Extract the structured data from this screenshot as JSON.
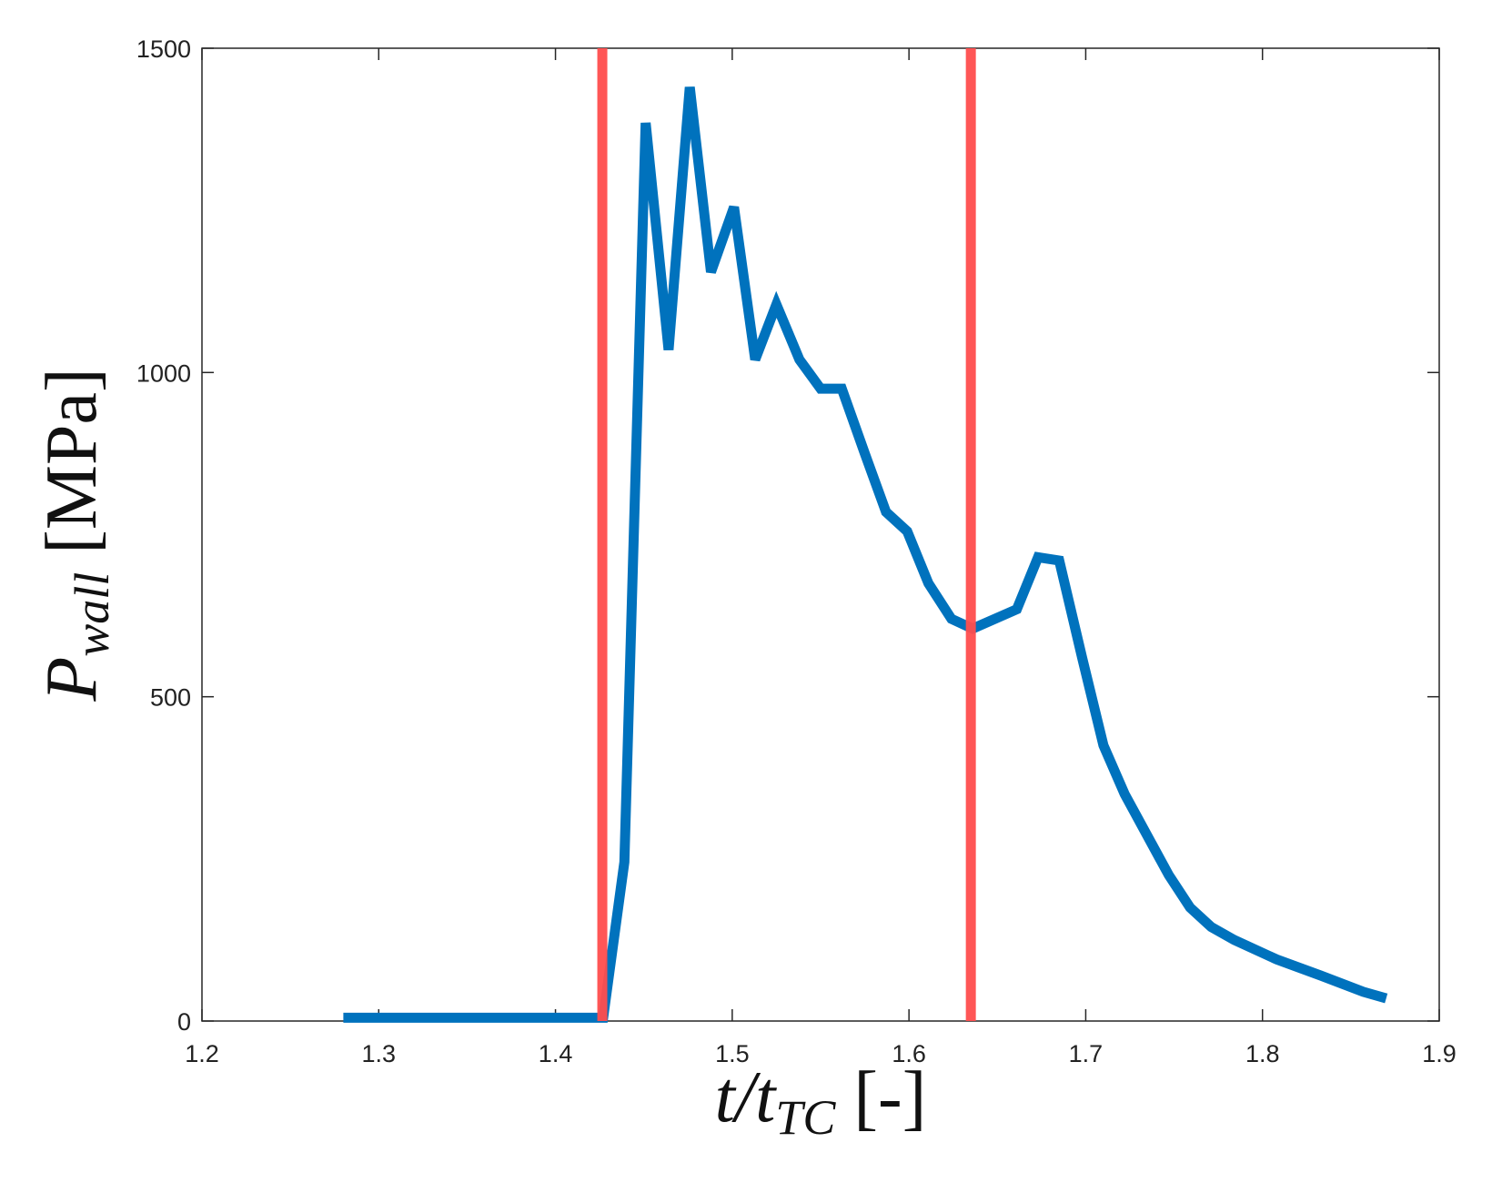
{
  "chart_data": {
    "type": "line",
    "xlabel": {
      "main": "t/t",
      "sub": "TC",
      "unit": " [-]"
    },
    "ylabel": {
      "main": "P",
      "sub": "wall",
      "unit": " [MPa]"
    },
    "xlim": [
      1.2,
      1.9
    ],
    "ylim": [
      0,
      1500
    ],
    "x_ticks": [
      "1.2",
      "1.3",
      "1.4",
      "1.5",
      "1.6",
      "1.7",
      "1.8",
      "1.9"
    ],
    "y_ticks": [
      "0",
      "500",
      "1000",
      "1500"
    ],
    "grid": false,
    "series": [
      {
        "color": "#0072BD",
        "x": [
          1.28,
          1.427,
          1.439,
          1.451,
          1.464,
          1.476,
          1.488,
          1.501,
          1.513,
          1.525,
          1.538,
          1.55,
          1.562,
          1.575,
          1.587,
          1.599,
          1.611,
          1.624,
          1.636,
          1.661,
          1.673,
          1.685,
          1.698,
          1.71,
          1.722,
          1.747,
          1.759,
          1.771,
          1.784,
          1.808,
          1.833,
          1.857,
          1.87
        ],
        "y": [
          5,
          5,
          245,
          1385,
          1035,
          1440,
          1155,
          1255,
          1020,
          1105,
          1020,
          975,
          975,
          875,
          785,
          755,
          675,
          620,
          605,
          635,
          715,
          710,
          560,
          425,
          350,
          225,
          175,
          145,
          125,
          95,
          70,
          45,
          35
        ]
      }
    ],
    "vlines": [
      {
        "x": 1.4265,
        "color": "#FF4D4D"
      },
      {
        "x": 1.635,
        "color": "#FF4D4D"
      }
    ]
  }
}
